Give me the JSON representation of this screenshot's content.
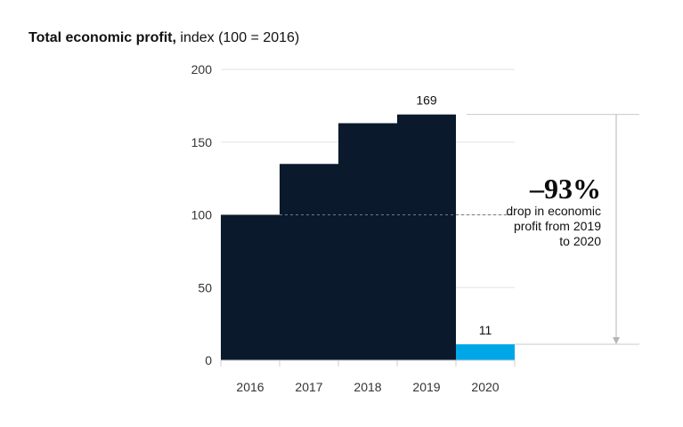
{
  "title": {
    "bold": "Total economic profit,",
    "rest": " index (100 = 2016)"
  },
  "chart_data": {
    "type": "bar",
    "categories": [
      "2016",
      "2017",
      "2018",
      "2019",
      "2020"
    ],
    "values": [
      100,
      135,
      163,
      169,
      11
    ],
    "data_labels": {
      "2019": "169",
      "2020": "11"
    },
    "ylim": [
      0,
      200
    ],
    "yticks": [
      0,
      50,
      100,
      150,
      200
    ],
    "bar_colors": [
      "#0a1a2c",
      "#0a1a2c",
      "#0a1a2c",
      "#0a1a2c",
      "#00a7e8"
    ],
    "grid": true,
    "annotation": {
      "value": "–93%",
      "text": "drop in economic profit from 2019 to 2020"
    }
  }
}
